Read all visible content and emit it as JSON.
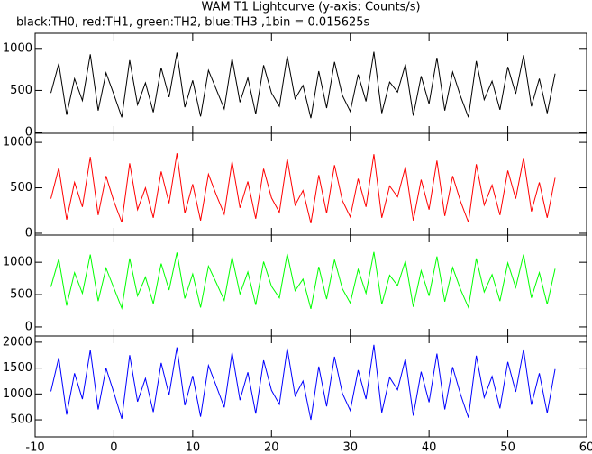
{
  "header": {
    "title": "WAM T1 Lightcurve (y-axis: Counts/s)",
    "subtitle": "black:TH0, red:TH1, green:TH2, blue:TH3 ,1bin = 0.015625s"
  },
  "chart_data": [
    {
      "type": "line",
      "x": [
        -8,
        -7,
        -6,
        -5,
        -4,
        -3,
        -2,
        -1,
        0,
        1,
        2,
        3,
        4,
        5,
        6,
        7,
        8,
        9,
        10,
        11,
        12,
        13,
        14,
        15,
        16,
        17,
        18,
        19,
        20,
        21,
        22,
        23,
        24,
        25,
        26,
        27,
        28,
        29,
        30,
        31,
        32,
        33,
        34,
        35,
        36,
        37,
        38,
        39,
        40,
        41,
        42,
        43,
        44,
        45,
        46,
        47,
        48,
        49,
        50,
        51,
        52,
        53,
        54,
        55,
        56
      ],
      "series": [
        {
          "name": "TH0",
          "color": "#000000",
          "values": [
            470,
            820,
            210,
            640,
            380,
            930,
            260,
            710,
            450,
            180,
            860,
            330,
            590,
            240,
            770,
            420,
            950,
            300,
            620,
            190,
            740,
            510,
            280,
            880,
            360,
            650,
            220,
            800,
            470,
            310,
            910,
            400,
            560,
            170,
            730,
            290,
            840,
            440,
            250,
            690,
            370,
            960,
            230,
            600,
            480,
            810,
            200,
            670,
            340,
            890,
            260,
            720,
            430,
            180,
            850,
            390,
            610,
            270,
            780,
            460,
            920,
            310,
            640,
            230,
            700
          ]
        }
      ],
      "xlim": [
        -10,
        60
      ],
      "xticks": [
        -10,
        0,
        10,
        20,
        30,
        40,
        50,
        60
      ],
      "ylim": [
        -10,
        1180
      ],
      "yticks": [
        0,
        500,
        1000
      ]
    },
    {
      "type": "line",
      "x": [
        -8,
        -7,
        -6,
        -5,
        -4,
        -3,
        -2,
        -1,
        0,
        1,
        2,
        3,
        4,
        5,
        6,
        7,
        8,
        9,
        10,
        11,
        12,
        13,
        14,
        15,
        16,
        17,
        18,
        19,
        20,
        21,
        22,
        23,
        24,
        25,
        26,
        27,
        28,
        29,
        30,
        31,
        32,
        33,
        34,
        35,
        36,
        37,
        38,
        39,
        40,
        41,
        42,
        43,
        44,
        45,
        46,
        47,
        48,
        49,
        50,
        51,
        52,
        53,
        54,
        55,
        56
      ],
      "series": [
        {
          "name": "TH1",
          "color": "#ff0000",
          "values": [
            380,
            720,
            150,
            560,
            290,
            840,
            200,
            630,
            350,
            120,
            770,
            260,
            500,
            170,
            680,
            330,
            880,
            220,
            540,
            140,
            650,
            420,
            210,
            790,
            280,
            570,
            160,
            710,
            390,
            230,
            820,
            310,
            470,
            110,
            640,
            220,
            750,
            360,
            180,
            600,
            290,
            870,
            170,
            520,
            400,
            730,
            140,
            590,
            260,
            800,
            190,
            630,
            350,
            120,
            760,
            310,
            530,
            200,
            690,
            380,
            830,
            240,
            560,
            170,
            610
          ]
        }
      ],
      "xlim": [
        -10,
        60
      ],
      "xticks": [
        -10,
        0,
        10,
        20,
        30,
        40,
        50,
        60
      ],
      "ylim": [
        -20,
        1100
      ],
      "yticks": [
        0,
        500,
        1000
      ]
    },
    {
      "type": "line",
      "x": [
        -8,
        -7,
        -6,
        -5,
        -4,
        -3,
        -2,
        -1,
        0,
        1,
        2,
        3,
        4,
        5,
        6,
        7,
        8,
        9,
        10,
        11,
        12,
        13,
        14,
        15,
        16,
        17,
        18,
        19,
        20,
        21,
        22,
        23,
        24,
        25,
        26,
        27,
        28,
        29,
        30,
        31,
        32,
        33,
        34,
        35,
        36,
        37,
        38,
        39,
        40,
        41,
        42,
        43,
        44,
        45,
        46,
        47,
        48,
        49,
        50,
        51,
        52,
        53,
        54,
        55,
        56
      ],
      "series": [
        {
          "name": "TH2",
          "color": "#00ff00",
          "values": [
            620,
            1050,
            330,
            840,
            520,
            1120,
            400,
            910,
            600,
            290,
            1060,
            480,
            770,
            360,
            980,
            570,
            1150,
            440,
            820,
            300,
            940,
            680,
            410,
            1080,
            510,
            850,
            340,
            1010,
            630,
            450,
            1130,
            560,
            740,
            280,
            930,
            430,
            1040,
            590,
            370,
            890,
            520,
            1160,
            350,
            800,
            640,
            1020,
            310,
            870,
            480,
            1090,
            390,
            920,
            580,
            300,
            1060,
            540,
            810,
            400,
            990,
            610,
            1120,
            450,
            840,
            350,
            900
          ]
        }
      ],
      "xlim": [
        -10,
        60
      ],
      "xticks": [
        -10,
        0,
        10,
        20,
        30,
        40,
        50,
        60
      ],
      "ylim": [
        -140,
        1420
      ],
      "yticks": [
        0,
        500,
        1000
      ]
    },
    {
      "type": "line",
      "x": [
        -8,
        -7,
        -6,
        -5,
        -4,
        -3,
        -2,
        -1,
        0,
        1,
        2,
        3,
        4,
        5,
        6,
        7,
        8,
        9,
        10,
        11,
        12,
        13,
        14,
        15,
        16,
        17,
        18,
        19,
        20,
        21,
        22,
        23,
        24,
        25,
        26,
        27,
        28,
        29,
        30,
        31,
        32,
        33,
        34,
        35,
        36,
        37,
        38,
        39,
        40,
        41,
        42,
        43,
        44,
        45,
        46,
        47,
        48,
        49,
        50,
        51,
        52,
        53,
        54,
        55,
        56
      ],
      "series": [
        {
          "name": "TH3",
          "color": "#0000ff",
          "values": [
            1050,
            1700,
            600,
            1400,
            900,
            1850,
            700,
            1500,
            1020,
            520,
            1750,
            850,
            1300,
            650,
            1600,
            980,
            1900,
            780,
            1350,
            560,
            1550,
            1150,
            740,
            1800,
            880,
            1420,
            620,
            1650,
            1070,
            800,
            1880,
            960,
            1250,
            500,
            1530,
            760,
            1720,
            1010,
            680,
            1460,
            900,
            1950,
            640,
            1320,
            1080,
            1680,
            580,
            1430,
            840,
            1780,
            700,
            1520,
            990,
            540,
            1740,
            930,
            1340,
            720,
            1620,
            1040,
            1860,
            790,
            1400,
            630,
            1480
          ]
        }
      ],
      "xlim": [
        -10,
        60
      ],
      "xticks": [
        -10,
        0,
        10,
        20,
        30,
        40,
        50,
        60
      ],
      "ylim": [
        170,
        2120
      ],
      "yticks": [
        500,
        1000,
        1500,
        2000
      ]
    }
  ]
}
